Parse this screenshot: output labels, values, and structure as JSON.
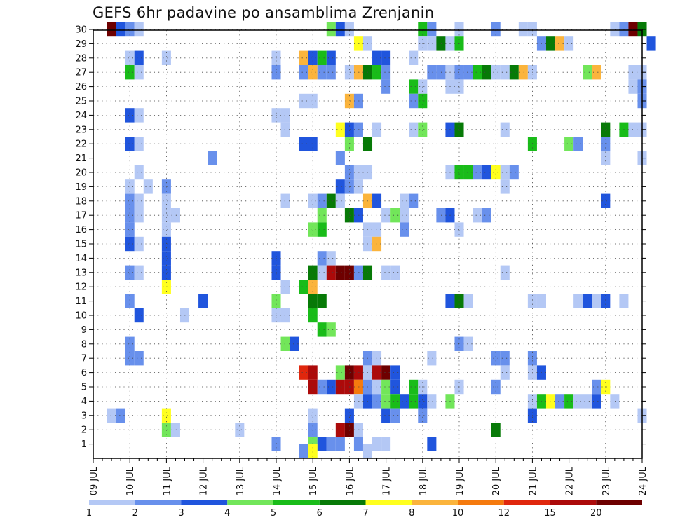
{
  "chart_data": {
    "type": "heatmap",
    "title": "GEFS 6hr padavine po ansamblima Zrenjanin",
    "x_ticks": [
      "09 JUL",
      "10 JUL",
      "11 JUL",
      "12 JUL",
      "13 JUL",
      "14 JUL",
      "15 JUL",
      "16 JUL",
      "17 JUL",
      "18 JUL",
      "19 JUL",
      "20 JUL",
      "21 JUL",
      "22 JUL",
      "23 JUL",
      "24 JUL"
    ],
    "y_ticks": [
      "1",
      "2",
      "3",
      "4",
      "5",
      "6",
      "7",
      "8",
      "9",
      "10",
      "11",
      "12",
      "13",
      "14",
      "15",
      "16",
      "17",
      "18",
      "19",
      "20",
      "21",
      "22",
      "23",
      "24",
      "25",
      "26",
      "27",
      "28",
      "29",
      "30"
    ],
    "xlim": [
      0,
      60
    ],
    "ylim": [
      0,
      30.5
    ],
    "grid": true,
    "colorbar": {
      "levels": [
        "1",
        "2",
        "3",
        "4",
        "5",
        "6",
        "7",
        "8",
        "10",
        "12",
        "15",
        "20"
      ],
      "colors": [
        "#b4c8f5",
        "#6890ec",
        "#2055dd",
        "#72e65a",
        "#19bc19",
        "#077a07",
        "#ffff1e",
        "#fbb43c",
        "#f57a0e",
        "#e0270d",
        "#ac0a0a",
        "#6e0000"
      ]
    },
    "cells": [
      [
        2,
        30,
        11
      ],
      [
        3,
        30,
        2
      ],
      [
        4,
        30,
        1
      ],
      [
        5,
        30,
        0
      ],
      [
        26,
        30,
        3
      ],
      [
        27,
        30,
        2
      ],
      [
        28,
        30,
        0
      ],
      [
        36,
        30,
        4
      ],
      [
        37,
        30,
        1
      ],
      [
        40,
        30,
        0
      ],
      [
        44,
        30,
        1
      ],
      [
        47,
        30,
        0
      ],
      [
        48,
        30,
        0
      ],
      [
        57,
        30,
        0
      ],
      [
        58,
        30,
        1
      ],
      [
        59,
        30,
        11
      ],
      [
        60,
        30,
        5
      ],
      [
        29,
        29,
        6
      ],
      [
        30,
        29,
        0
      ],
      [
        36,
        29,
        0
      ],
      [
        37,
        29,
        0
      ],
      [
        38,
        29,
        5
      ],
      [
        39,
        29,
        0
      ],
      [
        40,
        29,
        4
      ],
      [
        49,
        29,
        1
      ],
      [
        50,
        29,
        5
      ],
      [
        51,
        29,
        7
      ],
      [
        52,
        29,
        0
      ],
      [
        61,
        29,
        2
      ],
      [
        4,
        28,
        0
      ],
      [
        5,
        28,
        2
      ],
      [
        8,
        28,
        0
      ],
      [
        20,
        28,
        0
      ],
      [
        23,
        28,
        7
      ],
      [
        24,
        28,
        2
      ],
      [
        25,
        28,
        4
      ],
      [
        26,
        28,
        2
      ],
      [
        31,
        28,
        2
      ],
      [
        32,
        28,
        2
      ],
      [
        35,
        28,
        0
      ],
      [
        4,
        27,
        4
      ],
      [
        5,
        27,
        0
      ],
      [
        20,
        27,
        1
      ],
      [
        23,
        27,
        1
      ],
      [
        24,
        27,
        7
      ],
      [
        25,
        27,
        1
      ],
      [
        26,
        27,
        1
      ],
      [
        28,
        27,
        0
      ],
      [
        29,
        27,
        7
      ],
      [
        30,
        27,
        5
      ],
      [
        31,
        27,
        4
      ],
      [
        32,
        27,
        1
      ],
      [
        37,
        27,
        1
      ],
      [
        38,
        27,
        1
      ],
      [
        39,
        27,
        0
      ],
      [
        40,
        27,
        1
      ],
      [
        41,
        27,
        1
      ],
      [
        42,
        27,
        4
      ],
      [
        43,
        27,
        5
      ],
      [
        44,
        27,
        0
      ],
      [
        45,
        27,
        0
      ],
      [
        46,
        27,
        5
      ],
      [
        47,
        27,
        7
      ],
      [
        48,
        27,
        0
      ],
      [
        54,
        27,
        3
      ],
      [
        55,
        27,
        7
      ],
      [
        59,
        27,
        0
      ],
      [
        60,
        27,
        0
      ],
      [
        32,
        26,
        1
      ],
      [
        35,
        26,
        4
      ],
      [
        36,
        26,
        0
      ],
      [
        39,
        26,
        0
      ],
      [
        40,
        26,
        0
      ],
      [
        59,
        26,
        0
      ],
      [
        60,
        26,
        1
      ],
      [
        23,
        25,
        0
      ],
      [
        24,
        25,
        0
      ],
      [
        28,
        25,
        7
      ],
      [
        29,
        25,
        1
      ],
      [
        35,
        25,
        1
      ],
      [
        36,
        25,
        4
      ],
      [
        60,
        25,
        1
      ],
      [
        4,
        24,
        2
      ],
      [
        20,
        24,
        0
      ],
      [
        21,
        24,
        0
      ],
      [
        5,
        24,
        0
      ],
      [
        21,
        23,
        0
      ],
      [
        27,
        23,
        6
      ],
      [
        28,
        23,
        2
      ],
      [
        29,
        23,
        1
      ],
      [
        31,
        23,
        0
      ],
      [
        35,
        23,
        0
      ],
      [
        36,
        23,
        3
      ],
      [
        39,
        23,
        2
      ],
      [
        40,
        23,
        5
      ],
      [
        45,
        23,
        0
      ],
      [
        56,
        23,
        5
      ],
      [
        58,
        23,
        4
      ],
      [
        59,
        23,
        0
      ],
      [
        60,
        23,
        0
      ],
      [
        4,
        22,
        2
      ],
      [
        5,
        22,
        0
      ],
      [
        23,
        22,
        2
      ],
      [
        24,
        22,
        2
      ],
      [
        28,
        22,
        3
      ],
      [
        30,
        22,
        5
      ],
      [
        48,
        22,
        4
      ],
      [
        52,
        22,
        3
      ],
      [
        53,
        22,
        1
      ],
      [
        56,
        22,
        1
      ],
      [
        13,
        21,
        1
      ],
      [
        27,
        21,
        1
      ],
      [
        56,
        21,
        0
      ],
      [
        60,
        21,
        0
      ],
      [
        5,
        20,
        0
      ],
      [
        28,
        20,
        1
      ],
      [
        29,
        20,
        0
      ],
      [
        30,
        20,
        0
      ],
      [
        39,
        20,
        0
      ],
      [
        40,
        20,
        4
      ],
      [
        41,
        20,
        4
      ],
      [
        42,
        20,
        1
      ],
      [
        43,
        20,
        2
      ],
      [
        44,
        20,
        6
      ],
      [
        45,
        20,
        0
      ],
      [
        46,
        20,
        1
      ],
      [
        4,
        19,
        0
      ],
      [
        8,
        19,
        1
      ],
      [
        27,
        19,
        2
      ],
      [
        28,
        19,
        1
      ],
      [
        29,
        19,
        0
      ],
      [
        6,
        19,
        0
      ],
      [
        45,
        19,
        0
      ],
      [
        4,
        18,
        1
      ],
      [
        5,
        18,
        0
      ],
      [
        8,
        18,
        0
      ],
      [
        21,
        18,
        0
      ],
      [
        24,
        18,
        0
      ],
      [
        25,
        18,
        1
      ],
      [
        26,
        18,
        5
      ],
      [
        27,
        18,
        0
      ],
      [
        30,
        18,
        7
      ],
      [
        31,
        18,
        2
      ],
      [
        34,
        18,
        0
      ],
      [
        35,
        18,
        1
      ],
      [
        56,
        18,
        2
      ],
      [
        4,
        17,
        1
      ],
      [
        5,
        17,
        0
      ],
      [
        8,
        17,
        0
      ],
      [
        9,
        17,
        0
      ],
      [
        25,
        17,
        3
      ],
      [
        28,
        17,
        5
      ],
      [
        29,
        17,
        2
      ],
      [
        32,
        17,
        0
      ],
      [
        33,
        17,
        3
      ],
      [
        34,
        17,
        0
      ],
      [
        38,
        17,
        1
      ],
      [
        39,
        17,
        2
      ],
      [
        42,
        17,
        0
      ],
      [
        43,
        17,
        1
      ],
      [
        4,
        16,
        1
      ],
      [
        8,
        16,
        0
      ],
      [
        24,
        16,
        3
      ],
      [
        25,
        16,
        4
      ],
      [
        30,
        16,
        0
      ],
      [
        31,
        16,
        0
      ],
      [
        34,
        16,
        1
      ],
      [
        40,
        16,
        0
      ],
      [
        4,
        15,
        2
      ],
      [
        5,
        15,
        0
      ],
      [
        8,
        15,
        2
      ],
      [
        30,
        15,
        0
      ],
      [
        31,
        15,
        7
      ],
      [
        8,
        14,
        2
      ],
      [
        20,
        14,
        2
      ],
      [
        25,
        14,
        1
      ],
      [
        26,
        14,
        0
      ],
      [
        4,
        13,
        1
      ],
      [
        5,
        13,
        0
      ],
      [
        8,
        13,
        2
      ],
      [
        20,
        13,
        2
      ],
      [
        24,
        13,
        5
      ],
      [
        25,
        13,
        0
      ],
      [
        26,
        13,
        10
      ],
      [
        27,
        13,
        11
      ],
      [
        28,
        13,
        11
      ],
      [
        29,
        13,
        1
      ],
      [
        30,
        13,
        5
      ],
      [
        32,
        13,
        0
      ],
      [
        33,
        13,
        0
      ],
      [
        45,
        13,
        0
      ],
      [
        8,
        12,
        6
      ],
      [
        21,
        12,
        0
      ],
      [
        23,
        12,
        4
      ],
      [
        24,
        12,
        7
      ],
      [
        4,
        11,
        1
      ],
      [
        12,
        11,
        2
      ],
      [
        20,
        11,
        3
      ],
      [
        24,
        11,
        5
      ],
      [
        25,
        11,
        5
      ],
      [
        39,
        11,
        2
      ],
      [
        40,
        11,
        5
      ],
      [
        41,
        11,
        0
      ],
      [
        48,
        11,
        0
      ],
      [
        49,
        11,
        0
      ],
      [
        53,
        11,
        0
      ],
      [
        54,
        11,
        2
      ],
      [
        55,
        11,
        0
      ],
      [
        56,
        11,
        2
      ],
      [
        58,
        11,
        0
      ],
      [
        5,
        10,
        2
      ],
      [
        10,
        10,
        0
      ],
      [
        20,
        10,
        0
      ],
      [
        21,
        10,
        0
      ],
      [
        24,
        10,
        4
      ],
      [
        25,
        9,
        4
      ],
      [
        26,
        9,
        3
      ],
      [
        4,
        8,
        1
      ],
      [
        21,
        8,
        3
      ],
      [
        22,
        8,
        2
      ],
      [
        40,
        8,
        1
      ],
      [
        41,
        8,
        0
      ],
      [
        4,
        7,
        1
      ],
      [
        5,
        7,
        1
      ],
      [
        30,
        7,
        1
      ],
      [
        31,
        7,
        0
      ],
      [
        37,
        7,
        0
      ],
      [
        44,
        7,
        1
      ],
      [
        45,
        7,
        1
      ],
      [
        48,
        7,
        1
      ],
      [
        23,
        6,
        9
      ],
      [
        24,
        6,
        10
      ],
      [
        27,
        6,
        3
      ],
      [
        28,
        6,
        11
      ],
      [
        29,
        6,
        10
      ],
      [
        30,
        6,
        0
      ],
      [
        31,
        6,
        10
      ],
      [
        32,
        6,
        11
      ],
      [
        33,
        6,
        2
      ],
      [
        45,
        6,
        0
      ],
      [
        48,
        6,
        0
      ],
      [
        49,
        6,
        2
      ],
      [
        24,
        5,
        10
      ],
      [
        25,
        5,
        1
      ],
      [
        26,
        5,
        2
      ],
      [
        27,
        5,
        10
      ],
      [
        28,
        5,
        10
      ],
      [
        29,
        5,
        8
      ],
      [
        30,
        5,
        1
      ],
      [
        31,
        5,
        0
      ],
      [
        32,
        5,
        3
      ],
      [
        33,
        5,
        2
      ],
      [
        35,
        5,
        4
      ],
      [
        36,
        5,
        0
      ],
      [
        40,
        5,
        0
      ],
      [
        44,
        5,
        1
      ],
      [
        55,
        5,
        1
      ],
      [
        56,
        5,
        6
      ],
      [
        29,
        4,
        0
      ],
      [
        30,
        4,
        2
      ],
      [
        31,
        4,
        1
      ],
      [
        32,
        4,
        3
      ],
      [
        33,
        4,
        4
      ],
      [
        34,
        4,
        2
      ],
      [
        35,
        4,
        4
      ],
      [
        36,
        4,
        2
      ],
      [
        37,
        4,
        0
      ],
      [
        39,
        4,
        3
      ],
      [
        48,
        4,
        0
      ],
      [
        49,
        4,
        4
      ],
      [
        50,
        4,
        6
      ],
      [
        51,
        4,
        1
      ],
      [
        52,
        4,
        4
      ],
      [
        53,
        4,
        0
      ],
      [
        54,
        4,
        0
      ],
      [
        55,
        4,
        2
      ],
      [
        57,
        4,
        0
      ],
      [
        2,
        3,
        0
      ],
      [
        3,
        3,
        1
      ],
      [
        8,
        3,
        6
      ],
      [
        24,
        3,
        0
      ],
      [
        28,
        3,
        2
      ],
      [
        32,
        3,
        2
      ],
      [
        33,
        3,
        1
      ],
      [
        36,
        3,
        1
      ],
      [
        48,
        3,
        2
      ],
      [
        60,
        3,
        0
      ],
      [
        8,
        2,
        3
      ],
      [
        9,
        2,
        0
      ],
      [
        16,
        2,
        0
      ],
      [
        24,
        2,
        1
      ],
      [
        27,
        2,
        10
      ],
      [
        28,
        2,
        11
      ],
      [
        29,
        2,
        0
      ],
      [
        44,
        2,
        5
      ],
      [
        20,
        1,
        1
      ],
      [
        24,
        1,
        3
      ],
      [
        25,
        1,
        2
      ],
      [
        26,
        1,
        1
      ],
      [
        27,
        1,
        1
      ],
      [
        29,
        1,
        1
      ],
      [
        31,
        1,
        0
      ],
      [
        32,
        1,
        0
      ],
      [
        37,
        1,
        2
      ],
      [
        23,
        0.5,
        1
      ],
      [
        24,
        0.5,
        6
      ],
      [
        30,
        0.5,
        0
      ]
    ]
  }
}
